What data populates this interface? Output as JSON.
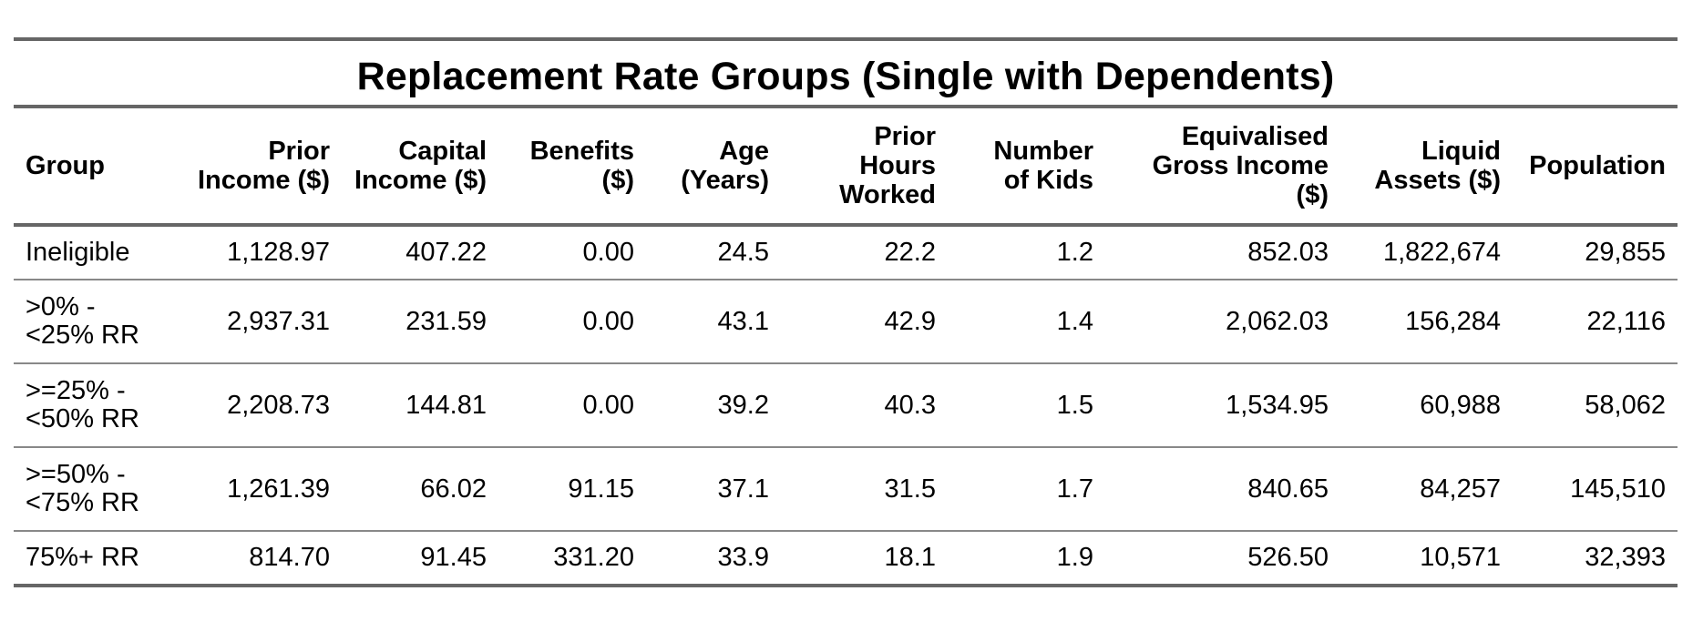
{
  "table": {
    "title": "Replacement Rate Groups (Single with Dependents)",
    "headers": {
      "group": "Group",
      "prior_income": [
        "Prior",
        "Income ($)"
      ],
      "capital_income": [
        "Capital",
        "Income ($)"
      ],
      "benefits": [
        "Benefits",
        "($)"
      ],
      "age": [
        "Age",
        "(Years)"
      ],
      "prior_hours": [
        "Prior",
        "Hours",
        "Worked"
      ],
      "kids": [
        "Number",
        "of Kids"
      ],
      "equiv_income": [
        "Equivalised",
        "Gross Income",
        "($)"
      ],
      "liquid_assets": [
        "Liquid",
        "Assets ($)"
      ],
      "population": "Population"
    },
    "rows": [
      {
        "group": [
          "Ineligible"
        ],
        "prior_income": "1,128.97",
        "capital_income": "407.22",
        "benefits": "0.00",
        "age": "24.5",
        "prior_hours": "22.2",
        "kids": "1.2",
        "equiv_income": "852.03",
        "liquid_assets": "1,822,674",
        "population": "29,855"
      },
      {
        "group": [
          ">0% -",
          "<25% RR"
        ],
        "prior_income": "2,937.31",
        "capital_income": "231.59",
        "benefits": "0.00",
        "age": "43.1",
        "prior_hours": "42.9",
        "kids": "1.4",
        "equiv_income": "2,062.03",
        "liquid_assets": "156,284",
        "population": "22,116"
      },
      {
        "group": [
          ">=25% -",
          "<50% RR"
        ],
        "prior_income": "2,208.73",
        "capital_income": "144.81",
        "benefits": "0.00",
        "age": "39.2",
        "prior_hours": "40.3",
        "kids": "1.5",
        "equiv_income": "1,534.95",
        "liquid_assets": "60,988",
        "population": "58,062"
      },
      {
        "group": [
          ">=50% -",
          "<75% RR"
        ],
        "prior_income": "1,261.39",
        "capital_income": "66.02",
        "benefits": "91.15",
        "age": "37.1",
        "prior_hours": "31.5",
        "kids": "1.7",
        "equiv_income": "840.65",
        "liquid_assets": "84,257",
        "population": "145,510"
      },
      {
        "group": [
          "75%+ RR"
        ],
        "prior_income": "814.70",
        "capital_income": "91.45",
        "benefits": "331.20",
        "age": "33.9",
        "prior_hours": "18.1",
        "kids": "1.9",
        "equiv_income": "526.50",
        "liquid_assets": "10,571",
        "population": "32,393"
      }
    ]
  }
}
